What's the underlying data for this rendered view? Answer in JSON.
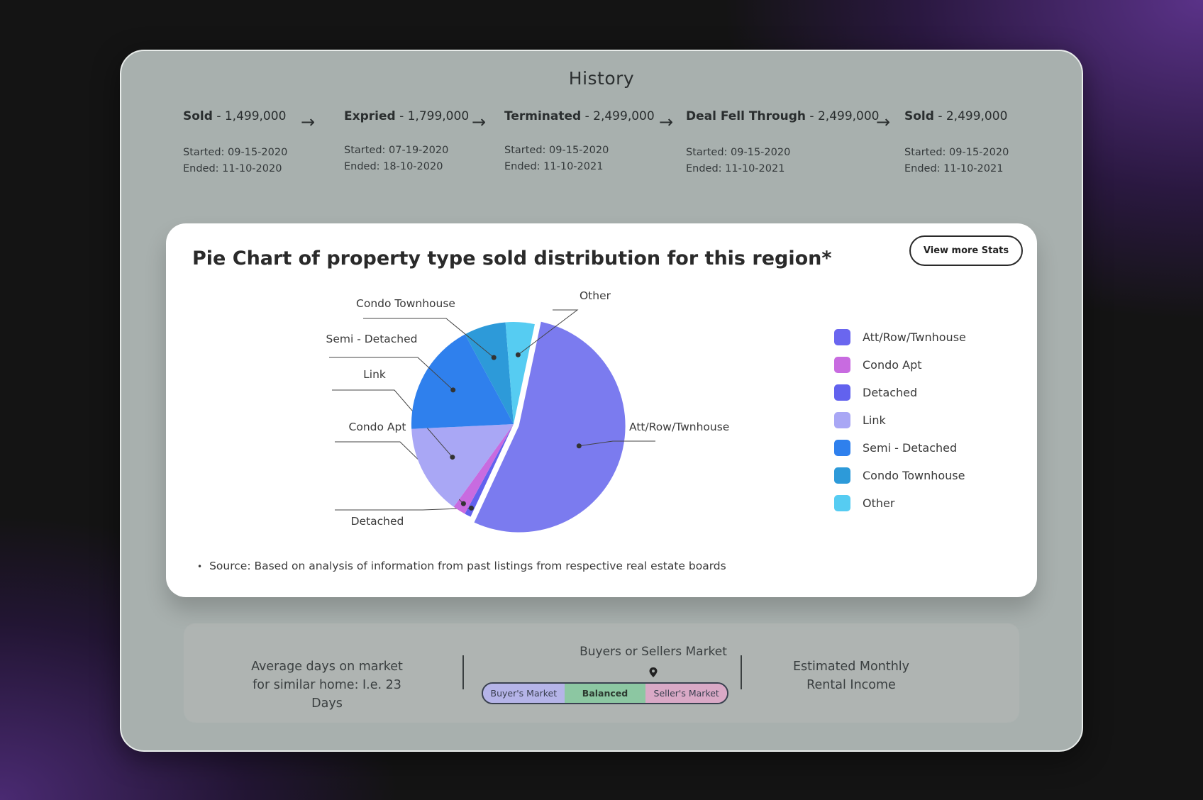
{
  "history": {
    "title": "History",
    "items": [
      {
        "status": "Sold",
        "price": " - 1,499,000",
        "started": "Started: 09-15-2020",
        "ended": "Ended: 11-10-2020"
      },
      {
        "status": "Expried",
        "price": " - 1,799,000",
        "started": "Started: 07-19-2020",
        "ended": "Ended: 18-10-2020"
      },
      {
        "status": "Terminated",
        "price": " - 2,499,000",
        "started": "Started: 09-15-2020",
        "ended": "Ended: 11-10-2021"
      },
      {
        "status": "Deal Fell Through",
        "price": " - 2,499,000",
        "started": "Started: 09-15-2020",
        "ended": "Ended: 11-10-2021"
      },
      {
        "status": "Sold",
        "price": " - 2,499,000",
        "started": "Started: 09-15-2020",
        "ended": "Ended: 11-10-2021"
      }
    ],
    "arrow": "→"
  },
  "card": {
    "title": "Pie Chart of property type sold distribution for this region*",
    "stats_button": "View more Stats",
    "source": "Source: Based on analysis of information from past listings from respective real estate boards",
    "bullet": "•"
  },
  "chart_data": {
    "type": "pie",
    "title": "Pie Chart of property type sold distribution for this region*",
    "slices": [
      {
        "label": "Att/Row/Twnhouse",
        "value": 52.5,
        "color": "#7b7bef"
      },
      {
        "label": "Detached",
        "value": 1.0,
        "color": "#6262ee"
      },
      {
        "label": "Condo Apt",
        "value": 2.0,
        "color": "#c86be0"
      },
      {
        "label": "Link",
        "value": 14.0,
        "color": "#a9a7f5"
      },
      {
        "label": "Semi - Detached",
        "value": 17.5,
        "color": "#2f80ed"
      },
      {
        "label": "Condo Townhouse",
        "value": 6.5,
        "color": "#2d9ad9"
      },
      {
        "label": "Other",
        "value": 4.5,
        "color": "#56ccf2"
      }
    ],
    "legend": [
      {
        "label": "Att/Row/Twnhouse",
        "color": "#6a66ef"
      },
      {
        "label": "Condo Apt",
        "color": "#c86be0"
      },
      {
        "label": "Detached",
        "color": "#6262ee"
      },
      {
        "label": "Link",
        "color": "#a9a7f5"
      },
      {
        "label": "Semi - Detached",
        "color": "#2f80ed"
      },
      {
        "label": "Condo Townhouse",
        "color": "#2d9ad9"
      },
      {
        "label": "Other",
        "color": "#56ccf2"
      }
    ],
    "legend_position": "right"
  },
  "bottom": {
    "avg_days": "Average days on market for similar home: I.e. 23 Days",
    "market_title": "Buyers or Sellers Market",
    "segments": [
      {
        "label": "Buyer's Market",
        "color": "#b5b4e8"
      },
      {
        "label": "Balanced",
        "color": "#8cc7a2"
      },
      {
        "label": "Seller's Market",
        "color": "#d9a9c6"
      }
    ],
    "rental": "Estimated Monthly Rental Income"
  }
}
